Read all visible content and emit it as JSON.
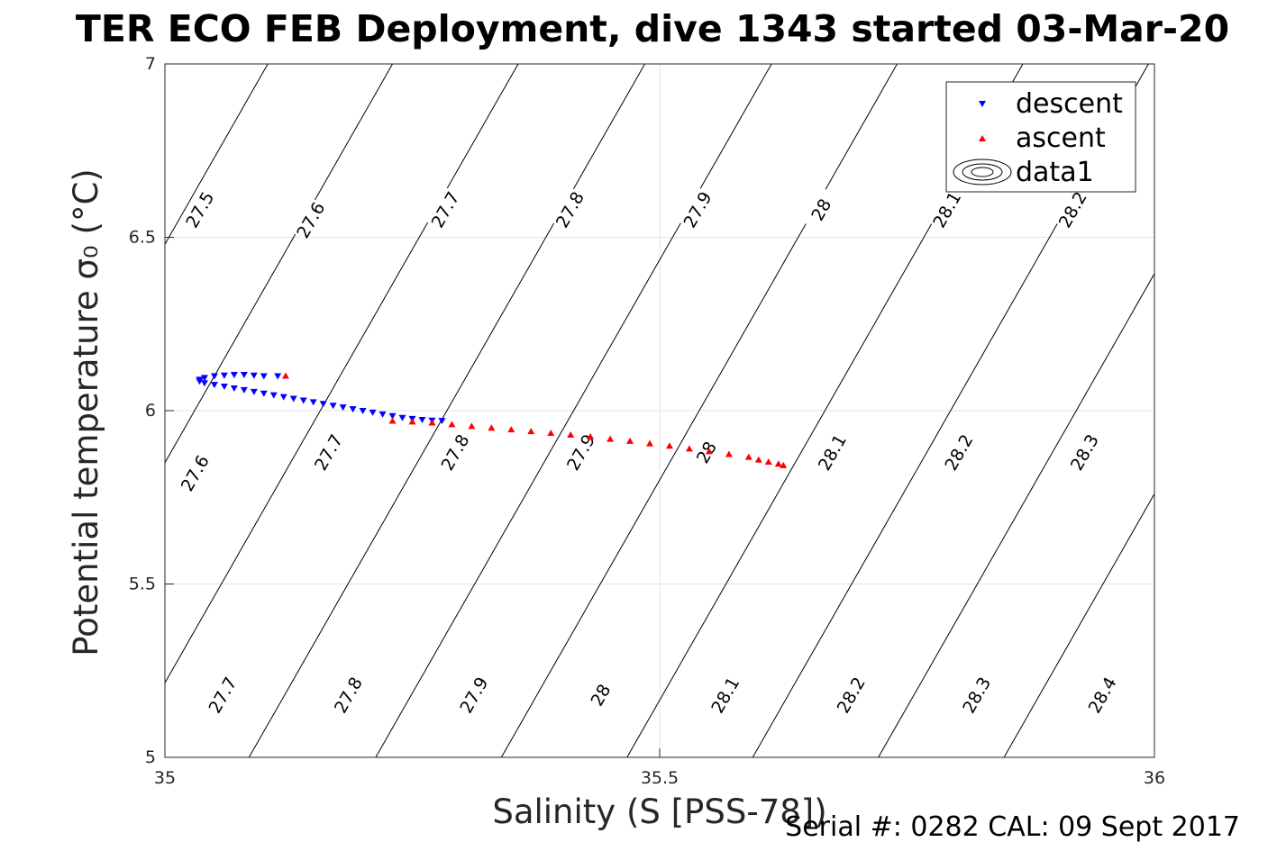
{
  "chart_data": {
    "type": "scatter",
    "title": "TER ECO FEB Deployment, dive 1343 started 03-Mar-20",
    "xlabel": "Salinity (S [PSS-78])",
    "ylabel": "Potential temperature σ₀ (°C)",
    "xlim": [
      35,
      36
    ],
    "ylim": [
      5,
      7
    ],
    "x_ticks": [
      35,
      35.5,
      36
    ],
    "y_ticks": [
      5,
      5.5,
      6,
      6.5,
      7
    ],
    "x_tick_labels": [
      "35",
      "35.5",
      "36"
    ],
    "y_tick_labels": [
      "5",
      "5.5",
      "6",
      "6.5",
      "7"
    ],
    "grid": true,
    "legend_position": "top-right",
    "series": [
      {
        "name": "descent",
        "marker": "triangle-down",
        "color": "#0000ff",
        "points": [
          [
            35.035,
            6.09
          ],
          [
            35.04,
            6.095
          ],
          [
            35.05,
            6.1
          ],
          [
            35.06,
            6.102
          ],
          [
            35.07,
            6.104
          ],
          [
            35.08,
            6.104
          ],
          [
            35.09,
            6.102
          ],
          [
            35.1,
            6.1
          ],
          [
            35.114,
            6.1
          ],
          [
            35.035,
            6.085
          ],
          [
            35.04,
            6.08
          ],
          [
            35.05,
            6.075
          ],
          [
            35.06,
            6.07
          ],
          [
            35.07,
            6.065
          ],
          [
            35.08,
            6.06
          ],
          [
            35.09,
            6.055
          ],
          [
            35.1,
            6.05
          ],
          [
            35.11,
            6.045
          ],
          [
            35.12,
            6.04
          ],
          [
            35.13,
            6.035
          ],
          [
            35.14,
            6.03
          ],
          [
            35.15,
            6.025
          ],
          [
            35.16,
            6.02
          ],
          [
            35.17,
            6.015
          ],
          [
            35.18,
            6.01
          ],
          [
            35.19,
            6.005
          ],
          [
            35.2,
            6.0
          ],
          [
            35.21,
            5.995
          ],
          [
            35.22,
            5.99
          ],
          [
            35.23,
            5.985
          ],
          [
            35.24,
            5.98
          ],
          [
            35.25,
            5.977
          ],
          [
            35.26,
            5.974
          ],
          [
            35.27,
            5.972
          ],
          [
            35.28,
            5.971
          ]
        ]
      },
      {
        "name": "ascent",
        "marker": "triangle-up",
        "color": "#ff0000",
        "points": [
          [
            35.122,
            6.1
          ],
          [
            35.23,
            5.97
          ],
          [
            35.25,
            5.968
          ],
          [
            35.27,
            5.965
          ],
          [
            35.29,
            5.96
          ],
          [
            35.31,
            5.955
          ],
          [
            35.33,
            5.95
          ],
          [
            35.35,
            5.945
          ],
          [
            35.37,
            5.94
          ],
          [
            35.39,
            5.935
          ],
          [
            35.41,
            5.93
          ],
          [
            35.43,
            5.925
          ],
          [
            35.45,
            5.918
          ],
          [
            35.47,
            5.912
          ],
          [
            35.49,
            5.905
          ],
          [
            35.51,
            5.898
          ],
          [
            35.53,
            5.89
          ],
          [
            35.55,
            5.882
          ],
          [
            35.57,
            5.874
          ],
          [
            35.59,
            5.866
          ],
          [
            35.6,
            5.858
          ],
          [
            35.61,
            5.852
          ],
          [
            35.62,
            5.846
          ],
          [
            35.625,
            5.842
          ]
        ]
      },
      {
        "name": "data1",
        "marker": "contour",
        "color": "#000000"
      }
    ],
    "contours": {
      "slope_degC_per_PSU": 5.0,
      "base_temperature_degC": 7.0,
      "base_levels": [
        {
          "level": "27.5",
          "S_at_7C": 35.104
        },
        {
          "level": "27.6",
          "S_at_7C": 35.23
        },
        {
          "level": "27.7",
          "S_at_7C": 35.357
        },
        {
          "level": "27.8",
          "S_at_7C": 35.485
        },
        {
          "level": "27.9",
          "S_at_7C": 35.613
        },
        {
          "level": "28",
          "S_at_7C": 35.74
        },
        {
          "level": "28.1",
          "S_at_7C": 35.867
        },
        {
          "level": "28.2",
          "S_at_7C": 35.994
        },
        {
          "level": "28.3",
          "S_at_7C": 36.121
        },
        {
          "level": "28.4",
          "S_at_7C": 36.248
        }
      ],
      "slope_correction_per_degC": 0.018,
      "labels": [
        {
          "level": "27.5",
          "S": 35.035,
          "T": 6.58
        },
        {
          "level": "27.6",
          "S": 35.147,
          "T": 6.55
        },
        {
          "level": "27.7",
          "S": 35.283,
          "T": 6.58
        },
        {
          "level": "27.8",
          "S": 35.409,
          "T": 6.58
        },
        {
          "level": "27.9",
          "S": 35.538,
          "T": 6.58
        },
        {
          "level": "28",
          "S": 35.663,
          "T": 6.58
        },
        {
          "level": "28.1",
          "S": 35.79,
          "T": 6.58
        },
        {
          "level": "28.2",
          "S": 35.917,
          "T": 6.58
        },
        {
          "level": "27.6",
          "S": 35.03,
          "T": 5.82
        },
        {
          "level": "27.7",
          "S": 35.165,
          "T": 5.88
        },
        {
          "level": "27.8",
          "S": 35.293,
          "T": 5.88
        },
        {
          "level": "27.9",
          "S": 35.42,
          "T": 5.88
        },
        {
          "level": "28",
          "S": 35.547,
          "T": 5.88
        },
        {
          "level": "28.1",
          "S": 35.674,
          "T": 5.88
        },
        {
          "level": "28.2",
          "S": 35.802,
          "T": 5.88
        },
        {
          "level": "28.3",
          "S": 35.929,
          "T": 5.88
        },
        {
          "level": "27.7",
          "S": 35.058,
          "T": 5.18
        },
        {
          "level": "27.8",
          "S": 35.185,
          "T": 5.18
        },
        {
          "level": "27.9",
          "S": 35.312,
          "T": 5.18
        },
        {
          "level": "28",
          "S": 35.44,
          "T": 5.18
        },
        {
          "level": "28.1",
          "S": 35.566,
          "T": 5.18
        },
        {
          "level": "28.2",
          "S": 35.693,
          "T": 5.18
        },
        {
          "level": "28.3",
          "S": 35.82,
          "T": 5.18
        },
        {
          "level": "28.4",
          "S": 35.947,
          "T": 5.18
        }
      ]
    }
  },
  "footer": {
    "serial_text": "Serial #: 0282  CAL: 09 Sept 2017"
  }
}
